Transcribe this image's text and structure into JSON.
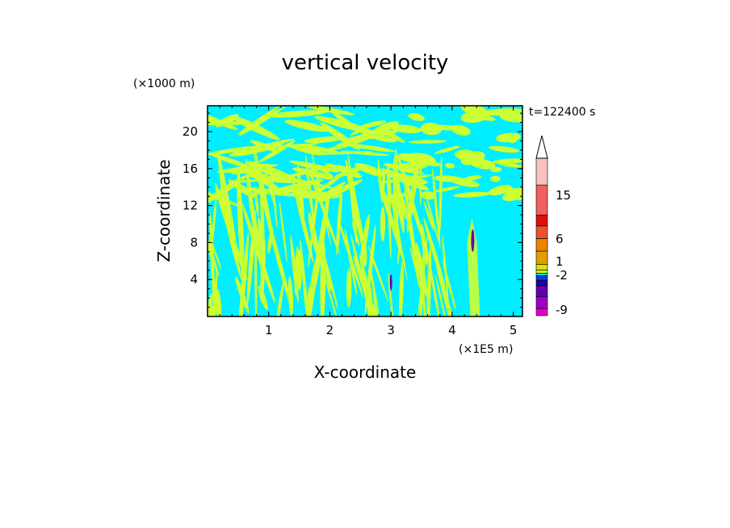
{
  "chart_data": {
    "type": "heatmap",
    "title": "vertical velocity",
    "xlabel": "X-coordinate",
    "ylabel": "Z-coordinate",
    "x_unit": "(×1E5 m)",
    "y_unit": "(×1000 m)",
    "time_label": "t=122400 s",
    "xlim": [
      0,
      5.15
    ],
    "ylim": [
      0,
      22.8
    ],
    "x_ticks": [
      "1",
      "2",
      "3",
      "4",
      "5"
    ],
    "y_ticks": [
      "4",
      "8",
      "12",
      "16",
      "20"
    ],
    "colorbar": {
      "tick_labels": [
        "15",
        "6",
        "1",
        "-2",
        "-9"
      ],
      "colors": [
        "#e000c8",
        "#a000c0",
        "#6000b0",
        "#2000a0",
        "#0040e0",
        "#00e8ff",
        "#c8ff20",
        "#e0e000",
        "#e0a000",
        "#f08000",
        "#f05030",
        "#e01010",
        "#f06060",
        "#f8c0c0"
      ],
      "extend": "max"
    },
    "colors": {
      "positive": "#ccff33",
      "background": "#00eeff",
      "strong_neg": "#7000b0"
    }
  }
}
